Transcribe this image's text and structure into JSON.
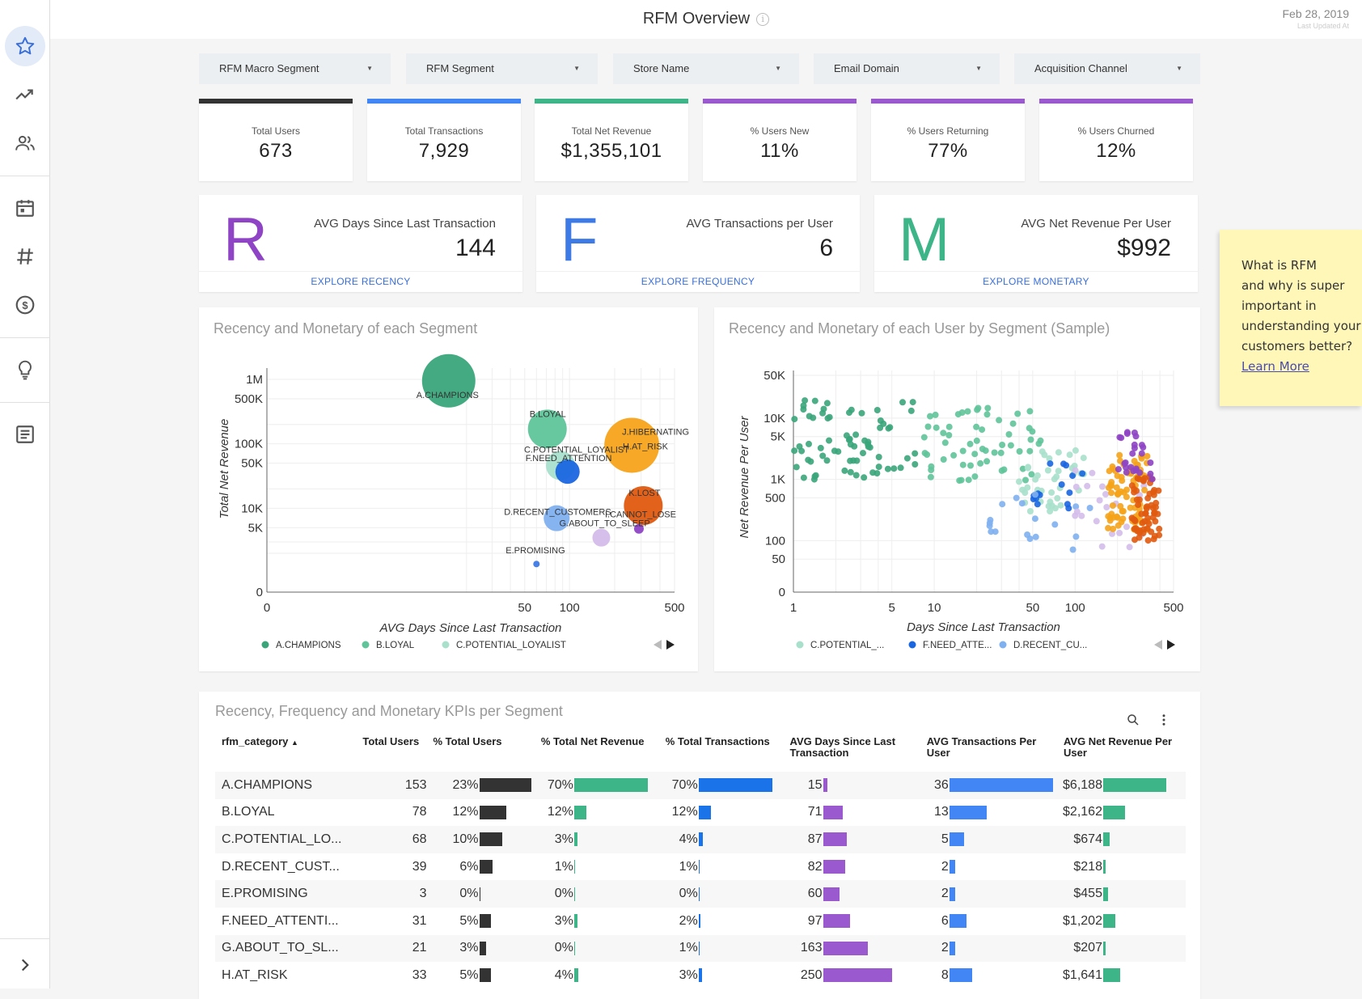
{
  "header": {
    "title": "RFM Overview",
    "date": "Feb 28, 2019",
    "date_caption": "Last Updated At"
  },
  "sidebar": {
    "items": [
      {
        "icon": "star-icon",
        "active": true
      },
      {
        "icon": "trending-up-icon"
      },
      {
        "icon": "users-icon"
      },
      {
        "icon": "calendar-icon"
      },
      {
        "icon": "hash-icon"
      },
      {
        "icon": "dollar-icon"
      },
      {
        "icon": "lightbulb-icon"
      },
      {
        "icon": "document-icon"
      },
      {
        "icon": "chevron-right-icon"
      }
    ]
  },
  "filters": [
    "RFM Macro Segment",
    "RFM Segment",
    "Store Name",
    "Email Domain",
    "Acquisition Channel"
  ],
  "kpis": [
    {
      "label": "Total Users",
      "value": "673",
      "color": "#333333"
    },
    {
      "label": "Total Transactions",
      "value": "7,929",
      "color": "#4285f4"
    },
    {
      "label": "Total Net Revenue",
      "value": "$1,355,101",
      "color": "#3eb489"
    },
    {
      "label": "% Users New",
      "value": "11%",
      "color": "#9b59d0"
    },
    {
      "label": "% Users Returning",
      "value": "77%",
      "color": "#9b59d0"
    },
    {
      "label": "% Users Churned",
      "value": "12%",
      "color": "#9b59d0"
    }
  ],
  "rfm": [
    {
      "letter": "R",
      "label": "AVG Days Since Last Transaction",
      "value": "144",
      "link": "EXPLORE RECENCY",
      "color": "#8e44c4"
    },
    {
      "letter": "F",
      "label": "AVG Transactions per User",
      "value": "6",
      "link": "EXPLORE FREQUENCY",
      "color": "#3d7ae6"
    },
    {
      "letter": "M",
      "label": "AVG Net Revenue Per User",
      "value": "$992",
      "link": "EXPLORE MONETARY",
      "color": "#3eb489"
    }
  ],
  "sticky_note": {
    "lines": [
      "What is RFM",
      "and why is super",
      "important in",
      "understanding your",
      "customers better?"
    ],
    "link": "Learn More"
  },
  "chart_data": [
    {
      "type": "scatter",
      "title": "Recency and Monetary of each Segment",
      "xlabel": "AVG Days Since Last Transaction",
      "ylabel": "Total Net Revenue",
      "x_ticks": [
        "0",
        "50",
        "100",
        "500"
      ],
      "y_ticks": [
        "0",
        "5K",
        "10K",
        "50K",
        "100K",
        "500K",
        "1M"
      ],
      "legend": [
        "A.CHAMPIONS",
        "B.LOYAL",
        "C.POTENTIAL_LOYALIST"
      ],
      "legend_colors": [
        "#3aa57a",
        "#5fc49a",
        "#a8e0cc"
      ],
      "points": [
        {
          "label": "A.CHAMPIONS",
          "x": 15,
          "y": 950000,
          "r": 33,
          "color": "#3aa57a"
        },
        {
          "label": "B.LOYAL",
          "x": 71,
          "y": 170000,
          "r": 24,
          "color": "#5fc49a"
        },
        {
          "label": "C.POTENTIAL_LOYALIST",
          "x": 87,
          "y": 46000,
          "r": 18,
          "color": "#a8e0cc"
        },
        {
          "label": "F.NEED_ATTENTION",
          "x": 97,
          "y": 37000,
          "r": 15,
          "color": "#1a66e0"
        },
        {
          "label": "J.HIBERNATING",
          "x": 260,
          "y": 95000,
          "r": 34,
          "color": "#f5a31a"
        },
        {
          "label": "H.AT_RISK",
          "x": 250,
          "y": 85000,
          "r": 0,
          "color": "#f5a31a"
        },
        {
          "label": "K.LOST",
          "x": 310,
          "y": 11000,
          "r": 24,
          "color": "#e05a10"
        },
        {
          "label": "I.CANNOT_LOSE",
          "x": 290,
          "y": 4800,
          "r": 6,
          "color": "#8e44c4"
        },
        {
          "label": "D.RECENT_CUSTOMERS",
          "x": 82,
          "y": 7000,
          "r": 16,
          "color": "#7fb0f0"
        },
        {
          "label": "G.ABOUT_TO_SLEEP",
          "x": 163,
          "y": 3500,
          "r": 11,
          "color": "#d4bcea"
        },
        {
          "label": "E.PROMISING",
          "x": 60,
          "y": 1365,
          "r": 4,
          "color": "#3d7ae6"
        }
      ]
    },
    {
      "type": "scatter",
      "title": "Recency and Monetary of each User by Segment (Sample)",
      "xlabel": "Days Since Last Transaction",
      "ylabel": "Net Revenue Per User",
      "x_ticks": [
        "1",
        "5",
        "10",
        "50",
        "100",
        "500"
      ],
      "y_ticks": [
        "0",
        "50",
        "100",
        "500",
        "1K",
        "5K",
        "10K",
        "50K"
      ],
      "legend": [
        "C.POTENTIAL_...",
        "F.NEED_ATTE...",
        "D.RECENT_CU..."
      ],
      "legend_colors": [
        "#a8e0cc",
        "#1a66e0",
        "#7fb0f0"
      ],
      "series_colors": [
        "#3aa57a",
        "#5fc49a",
        "#a8e0cc",
        "#1a66e0",
        "#7fb0f0",
        "#d4bcea",
        "#f5a31a",
        "#e05a10",
        "#8e44c4"
      ]
    }
  ],
  "table": {
    "title": "Recency, Frequency and Monetary KPIs per Segment",
    "headers": [
      "rfm_category",
      "Total Users",
      "% Total Users",
      "% Total Net Revenue",
      "% Total Transactions",
      "AVG Days Since Last Transaction",
      "AVG Transactions Per User",
      "AVG Net Revenue Per User"
    ],
    "sort_indicator": "▲",
    "rows": [
      {
        "name": "A.CHAMPIONS",
        "users": "153",
        "pct_users": "23%",
        "pu": 23,
        "pct_rev": "70%",
        "pr": 70,
        "pct_tx": "70%",
        "pt": 70,
        "days": "15",
        "d": 15,
        "tx": "36",
        "t": 36,
        "rev": "$6,188",
        "r": 6188
      },
      {
        "name": "B.LOYAL",
        "users": "78",
        "pct_users": "12%",
        "pu": 12,
        "pct_rev": "12%",
        "pr": 12,
        "pct_tx": "12%",
        "pt": 12,
        "days": "71",
        "d": 71,
        "tx": "13",
        "t": 13,
        "rev": "$2,162",
        "r": 2162
      },
      {
        "name": "C.POTENTIAL_LO...",
        "users": "68",
        "pct_users": "10%",
        "pu": 10,
        "pct_rev": "3%",
        "pr": 3,
        "pct_tx": "4%",
        "pt": 4,
        "days": "87",
        "d": 87,
        "tx": "5",
        "t": 5,
        "rev": "$674",
        "r": 674
      },
      {
        "name": "D.RECENT_CUST...",
        "users": "39",
        "pct_users": "6%",
        "pu": 6,
        "pct_rev": "1%",
        "pr": 1,
        "pct_tx": "1%",
        "pt": 1,
        "days": "82",
        "d": 82,
        "tx": "2",
        "t": 2,
        "rev": "$218",
        "r": 218
      },
      {
        "name": "E.PROMISING",
        "users": "3",
        "pct_users": "0%",
        "pu": 0,
        "pct_rev": "0%",
        "pr": 0,
        "pct_tx": "0%",
        "pt": 0,
        "days": "60",
        "d": 60,
        "tx": "2",
        "t": 2,
        "rev": "$455",
        "r": 455
      },
      {
        "name": "F.NEED_ATTENTI...",
        "users": "31",
        "pct_users": "5%",
        "pu": 5,
        "pct_rev": "3%",
        "pr": 3,
        "pct_tx": "2%",
        "pt": 2,
        "days": "97",
        "d": 97,
        "tx": "6",
        "t": 6,
        "rev": "$1,202",
        "r": 1202
      },
      {
        "name": "G.ABOUT_TO_SL...",
        "users": "21",
        "pct_users": "3%",
        "pu": 3,
        "pct_rev": "0%",
        "pr": 0,
        "pct_tx": "1%",
        "pt": 1,
        "days": "163",
        "d": 163,
        "tx": "2",
        "t": 2,
        "rev": "$207",
        "r": 207
      },
      {
        "name": "H.AT_RISK",
        "users": "33",
        "pct_users": "5%",
        "pu": 5,
        "pct_rev": "4%",
        "pr": 4,
        "pct_tx": "3%",
        "pt": 3,
        "days": "250",
        "d": 250,
        "tx": "8",
        "t": 8,
        "rev": "$1,641",
        "r": 1641
      }
    ],
    "bar_colors": {
      "users": "#333333",
      "rev": "#3eb489",
      "tx": "#1a73e8",
      "days": "#9b59d0",
      "avg_tx": "#4285f4",
      "avg_rev": "#3eb489"
    }
  }
}
